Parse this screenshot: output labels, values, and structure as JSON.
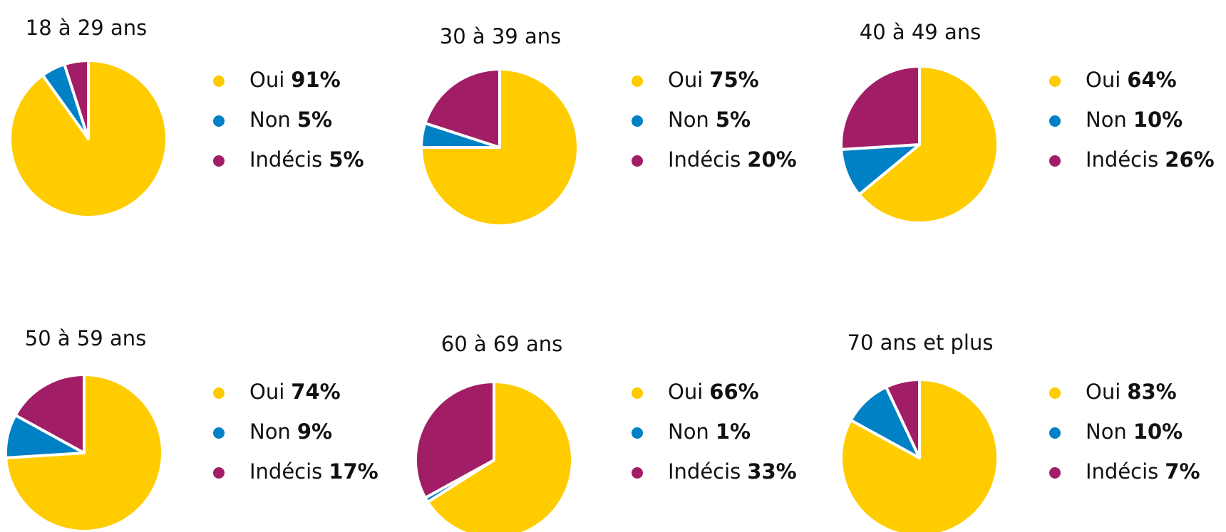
{
  "chart_data": [
    {
      "type": "pie",
      "title": "18 à 29 ans",
      "categories": [
        "Oui",
        "Non",
        "Indécis"
      ],
      "values": [
        91,
        5,
        5
      ],
      "value_labels": [
        "91%",
        "5%",
        "5%"
      ],
      "colors": [
        "#FFCC00",
        "#0081C6",
        "#A11E66"
      ]
    },
    {
      "type": "pie",
      "title": "30 à 39 ans",
      "categories": [
        "Oui",
        "Non",
        "Indécis"
      ],
      "values": [
        75,
        5,
        20
      ],
      "value_labels": [
        "75%",
        "5%",
        "20%"
      ],
      "colors": [
        "#FFCC00",
        "#0081C6",
        "#A11E66"
      ]
    },
    {
      "type": "pie",
      "title": "40 à 49 ans",
      "categories": [
        "Oui",
        "Non",
        "Indécis"
      ],
      "values": [
        64,
        10,
        26
      ],
      "value_labels": [
        "64%",
        "10%",
        "26%"
      ],
      "colors": [
        "#FFCC00",
        "#0081C6",
        "#A11E66"
      ]
    },
    {
      "type": "pie",
      "title": "50 à 59 ans",
      "categories": [
        "Oui",
        "Non",
        "Indécis"
      ],
      "values": [
        74,
        9,
        17
      ],
      "value_labels": [
        "74%",
        "9%",
        "17%"
      ],
      "colors": [
        "#FFCC00",
        "#0081C6",
        "#A11E66"
      ]
    },
    {
      "type": "pie",
      "title": "60 à 69 ans",
      "categories": [
        "Oui",
        "Non",
        "Indécis"
      ],
      "values": [
        66,
        1,
        33
      ],
      "value_labels": [
        "66%",
        "1%",
        "33%"
      ],
      "colors": [
        "#FFCC00",
        "#0081C6",
        "#A11E66"
      ]
    },
    {
      "type": "pie",
      "title": "70 ans et plus",
      "categories": [
        "Oui",
        "Non",
        "Indécis"
      ],
      "values": [
        83,
        10,
        7
      ],
      "value_labels": [
        "83%",
        "10%",
        "7%"
      ],
      "colors": [
        "#FFCC00",
        "#0081C6",
        "#A11E66"
      ]
    }
  ]
}
